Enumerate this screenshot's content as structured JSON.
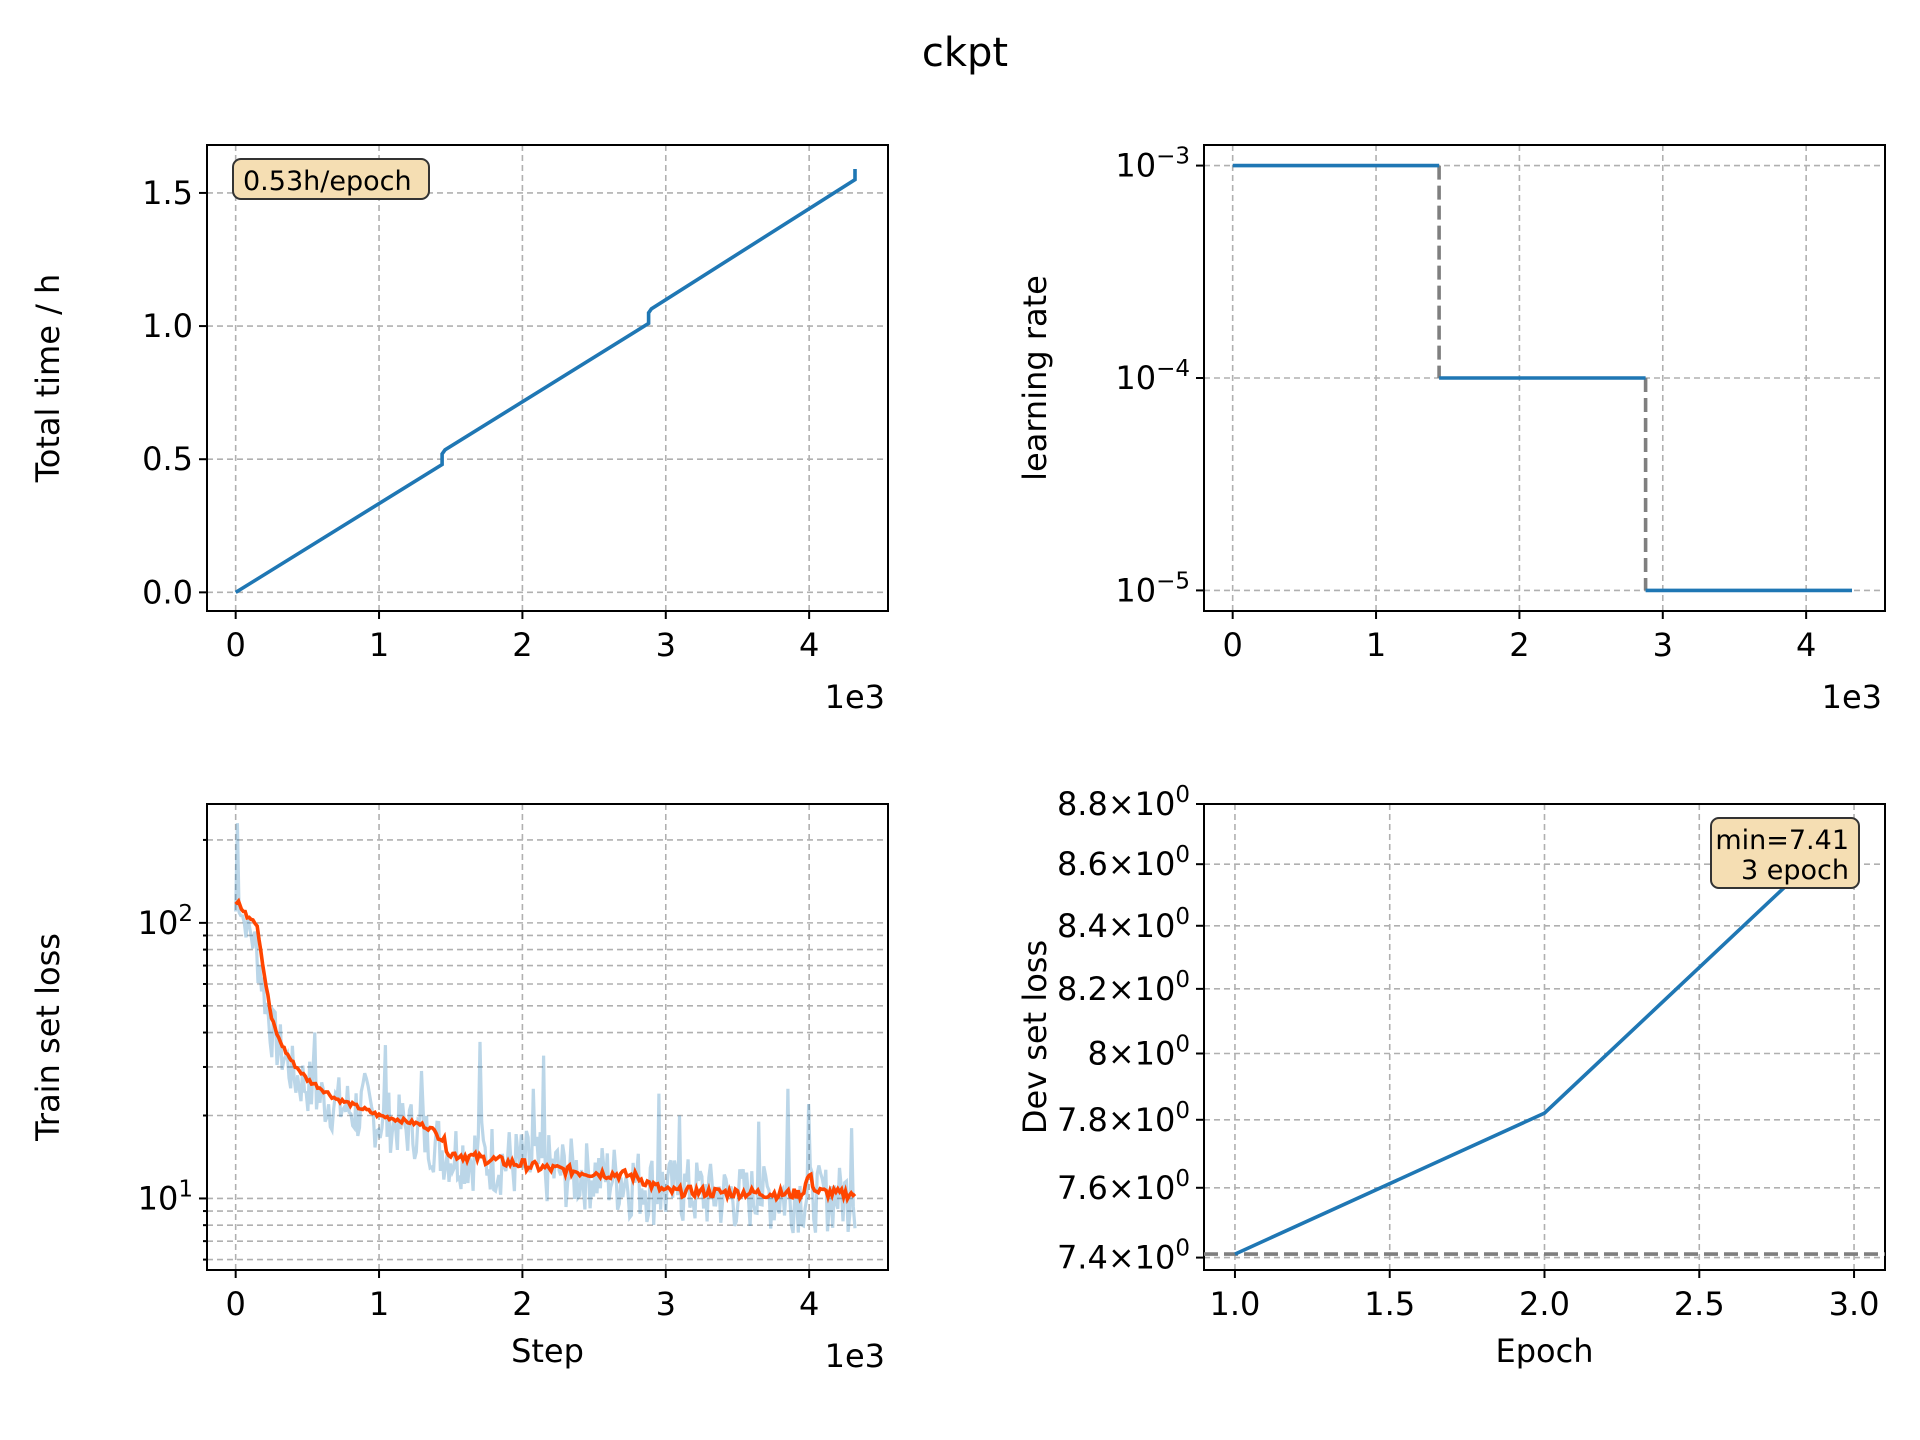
{
  "figure_title": "ckpt",
  "chart_data": [
    {
      "type": "line",
      "ylabel": "Total time / h",
      "xlabel": "",
      "x_multiplier": "1e3",
      "xlim": [
        -200,
        4550
      ],
      "ylim": [
        -0.07,
        1.68
      ],
      "xticks": [
        0,
        1000,
        2000,
        3000,
        4000
      ],
      "xtick_labels": [
        "0",
        "1",
        "2",
        "3",
        "4"
      ],
      "yticks": [
        0.0,
        0.5,
        1.0,
        1.5
      ],
      "ytick_labels": [
        "0.0",
        "0.5",
        "1.0",
        "1.5"
      ],
      "grid": true,
      "annotation": "0.53h/epoch",
      "annotation_position": "top-left",
      "series": [
        {
          "color": "#1f77b4",
          "x": [
            0,
            1440,
            1440,
            1460,
            2880,
            2880,
            2900,
            4320,
            4320
          ],
          "y": [
            0.0,
            0.48,
            0.52,
            0.535,
            1.01,
            1.05,
            1.065,
            1.55,
            1.59
          ]
        }
      ]
    },
    {
      "type": "line",
      "ylabel": "learning rate",
      "xlabel": "",
      "x_multiplier": "1e3",
      "yscale": "log",
      "xlim": [
        -200,
        4550
      ],
      "ylim": [
        8e-06,
        0.00125
      ],
      "xticks": [
        0,
        1000,
        2000,
        3000,
        4000
      ],
      "xtick_labels": [
        "0",
        "1",
        "2",
        "3",
        "4"
      ],
      "yticks": [
        1e-05,
        0.0001,
        0.001
      ],
      "ytick_labels": [
        {
          "base": "10",
          "exp": "−5"
        },
        {
          "base": "10",
          "exp": "−4"
        },
        {
          "base": "10",
          "exp": "−3"
        }
      ],
      "grid": true,
      "series": [
        {
          "color": "#1f77b4",
          "x": [
            0,
            1440
          ],
          "y": [
            0.001,
            0.001
          ]
        },
        {
          "color": "#1f77b4",
          "x": [
            1440,
            2880
          ],
          "y": [
            0.0001,
            0.0001
          ]
        },
        {
          "color": "#1f77b4",
          "x": [
            2880,
            4320
          ],
          "y": [
            1e-05,
            1e-05
          ]
        }
      ],
      "transitions": [
        {
          "color": "#7f7f7f",
          "x": [
            1440,
            1440
          ],
          "y": [
            0.001,
            0.0001
          ]
        },
        {
          "color": "#7f7f7f",
          "x": [
            2880,
            2880
          ],
          "y": [
            0.0001,
            1e-05
          ]
        }
      ]
    },
    {
      "type": "line",
      "ylabel": "Train set loss",
      "xlabel": "Step",
      "x_multiplier": "1e3",
      "yscale": "log",
      "xlim": [
        -200,
        4550
      ],
      "ylim": [
        5.5,
        270
      ],
      "xticks": [
        0,
        1000,
        2000,
        3000,
        4000
      ],
      "xtick_labels": [
        "0",
        "1",
        "2",
        "3",
        "4"
      ],
      "yticks": [
        10,
        100
      ],
      "ytick_labels": [
        {
          "base": "10",
          "exp": "1"
        },
        {
          "base": "10",
          "exp": "2"
        }
      ],
      "minor_yticks": [
        6,
        7,
        8,
        9,
        20,
        30,
        40,
        50,
        60,
        70,
        80,
        90,
        200
      ],
      "grid": true,
      "raw_series": {
        "color": "#1f77b4",
        "opacity": 0.3,
        "x": [
          0,
          10,
          30,
          60,
          100,
          150,
          200,
          250,
          300,
          350,
          400,
          500,
          600,
          700,
          800,
          900,
          1000,
          1100,
          1200,
          1300,
          1440,
          1500,
          1700,
          1900,
          2100,
          2300,
          2500,
          2700,
          2880,
          3000,
          3200,
          3400,
          3600,
          3800,
          4000,
          4200,
          4320
        ],
        "y": [
          110,
          230,
          120,
          100,
          95,
          80,
          55,
          40,
          35,
          32,
          28,
          26,
          23,
          22,
          21,
          20,
          19,
          18.5,
          18,
          17,
          15,
          14.5,
          14,
          13.5,
          13,
          12.5,
          12.5,
          12,
          11.5,
          11,
          11,
          10.5,
          10.5,
          10.5,
          10.5,
          10.5,
          10.5
        ],
        "band_low": [
          95,
          100,
          100,
          90,
          80,
          60,
          45,
          32,
          28,
          26,
          22,
          20,
          18,
          17,
          16,
          15.5,
          15,
          14.5,
          14,
          13.5,
          11.5,
          11,
          10.5,
          10,
          9.5,
          9,
          9,
          8.5,
          8,
          7.5,
          7.5,
          7.5,
          7.5,
          7.5,
          7.5,
          7.5,
          7.5
        ],
        "band_high": [
          130,
          230,
          140,
          115,
          110,
          100,
          75,
          55,
          48,
          42,
          38,
          35,
          32,
          30,
          30,
          32,
          28,
          26,
          25,
          24,
          22,
          22,
          22,
          20,
          19,
          18,
          17,
          17,
          16,
          15,
          15,
          14,
          14,
          14,
          14,
          14,
          14
        ],
        "spikes": [
          {
            "x": 1050,
            "y": 36
          },
          {
            "x": 1700,
            "y": 37
          },
          {
            "x": 2150,
            "y": 33
          },
          {
            "x": 2080,
            "y": 25
          },
          {
            "x": 2950,
            "y": 24
          },
          {
            "x": 3100,
            "y": 20
          },
          {
            "x": 3850,
            "y": 25
          },
          {
            "x": 4000,
            "y": 22
          },
          {
            "x": 4300,
            "y": 18
          },
          {
            "x": 3650,
            "y": 19
          },
          {
            "x": 1300,
            "y": 29
          },
          {
            "x": 550,
            "y": 40
          }
        ]
      },
      "smooth_series": {
        "color": "#ff4500",
        "x": [
          0,
          20,
          40,
          80,
          120,
          150,
          200,
          250,
          300,
          350,
          400,
          500,
          600,
          700,
          800,
          900,
          1000,
          1100,
          1200,
          1300,
          1400,
          1440,
          1500,
          1600,
          1700,
          1800,
          1900,
          2000,
          2100,
          2200,
          2300,
          2400,
          2500,
          2600,
          2700,
          2800,
          2900,
          3000,
          3200,
          3400,
          3600,
          3800,
          3950,
          4000,
          4050,
          4200,
          4320
        ],
        "y": [
          118,
          120,
          112,
          106,
          104,
          98,
          65,
          45,
          38,
          34,
          31,
          27,
          25,
          23,
          22,
          21,
          20,
          19.5,
          19,
          18.5,
          17.5,
          16.5,
          14.5,
          14.3,
          14,
          13.8,
          13.5,
          13.3,
          13,
          12.8,
          12.7,
          12.5,
          12.4,
          12.3,
          12.2,
          12,
          11.2,
          10.6,
          10.6,
          10.5,
          10.5,
          10.4,
          10.4,
          12.2,
          10.6,
          10.4,
          10.4
        ]
      }
    },
    {
      "type": "line",
      "ylabel": "Dev set loss",
      "xlabel": "Epoch",
      "yscale": "log",
      "xlim": [
        0.9,
        3.1
      ],
      "ylim": [
        7.365,
        8.8
      ],
      "xticks": [
        1.0,
        1.5,
        2.0,
        2.5,
        3.0
      ],
      "xtick_labels": [
        "1.0",
        "1.5",
        "2.0",
        "2.5",
        "3.0"
      ],
      "yticks": [
        7.4,
        7.6,
        7.8,
        8.0,
        8.2,
        8.4,
        8.6,
        8.8
      ],
      "ytick_labels": [
        {
          "base": "7.4",
          "exp": "0"
        },
        {
          "base": "7.6",
          "exp": "0"
        },
        {
          "base": "7.8",
          "exp": "0"
        },
        {
          "base": "8",
          "exp": "0"
        },
        {
          "base": "8.2",
          "exp": "0"
        },
        {
          "base": "8.4",
          "exp": "0"
        },
        {
          "base": "8.6",
          "exp": "0"
        },
        {
          "base": "8.8",
          "exp": "0"
        }
      ],
      "grid": true,
      "series": [
        {
          "color": "#1f77b4",
          "x": [
            1,
            2,
            3
          ],
          "y": [
            7.41,
            7.82,
            8.74
          ]
        }
      ],
      "hline": {
        "y": 7.41,
        "color": "#7f7f7f"
      },
      "annotation_lines": [
        "min=7.41",
        "3 epoch"
      ],
      "annotation_position": "top-right"
    }
  ]
}
